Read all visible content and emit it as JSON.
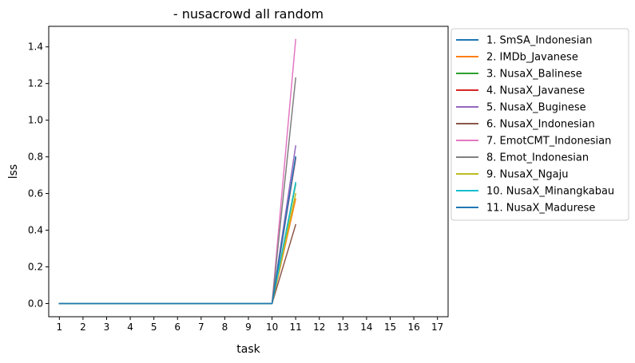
{
  "chart_data": {
    "type": "line",
    "title": "- nusacrowd all random",
    "xlabel": "task",
    "ylabel": "lss",
    "x": [
      1,
      2,
      3,
      4,
      5,
      6,
      7,
      8,
      9,
      10,
      11
    ],
    "xticks": [
      1,
      2,
      3,
      4,
      5,
      6,
      7,
      8,
      9,
      10,
      11,
      12,
      13,
      14,
      15,
      16,
      17
    ],
    "yticks": [
      0.0,
      0.2,
      0.4,
      0.6,
      0.8,
      1.0,
      1.2,
      1.4
    ],
    "xlim": [
      0.55,
      17.45
    ],
    "ylim": [
      -0.072,
      1.512
    ],
    "grid": false,
    "legend_placement": "outside-right",
    "series": [
      {
        "name": "1. SmSA_Indonesian",
        "color": "#1f77b4",
        "values": [
          0,
          0,
          0,
          0,
          0,
          0,
          0,
          0,
          0,
          0,
          0.8
        ]
      },
      {
        "name": "2. IMDb_Javanese",
        "color": "#ff7f0e",
        "values": [
          0,
          0,
          0,
          0,
          0,
          0,
          0,
          0,
          0,
          0,
          0.57
        ]
      },
      {
        "name": "3. NusaX_Balinese",
        "color": "#2ca02c",
        "values": [
          0,
          0,
          0,
          0,
          0,
          0,
          0,
          0,
          0,
          0,
          0.65
        ]
      },
      {
        "name": "4. NusaX_Javanese",
        "color": "#d62728",
        "values": [
          0,
          0,
          0,
          0,
          0,
          0,
          0,
          0,
          0,
          0,
          0.79
        ]
      },
      {
        "name": "5. NusaX_Buginese",
        "color": "#9467bd",
        "values": [
          0,
          0,
          0,
          0,
          0,
          0,
          0,
          0,
          0,
          0,
          0.86
        ]
      },
      {
        "name": "6. NusaX_Indonesian",
        "color": "#8c564b",
        "values": [
          0,
          0,
          0,
          0,
          0,
          0,
          0,
          0,
          0,
          0,
          0.43
        ]
      },
      {
        "name": "7. EmotCMT_Indonesian",
        "color": "#e377c2",
        "values": [
          0,
          0,
          0,
          0,
          0,
          0,
          0,
          0,
          0,
          0,
          1.44
        ]
      },
      {
        "name": "8. Emot_Indonesian",
        "color": "#7f7f7f",
        "values": [
          0,
          0,
          0,
          0,
          0,
          0,
          0,
          0,
          0,
          0,
          1.23
        ]
      },
      {
        "name": "9. NusaX_Ngaju",
        "color": "#bcbd22",
        "values": [
          0,
          0,
          0,
          0,
          0,
          0,
          0,
          0,
          0,
          0,
          0.6
        ]
      },
      {
        "name": "10. NusaX_Minangkabau",
        "color": "#17becf",
        "values": [
          0,
          0,
          0,
          0,
          0,
          0,
          0,
          0,
          0,
          0,
          0.66
        ]
      },
      {
        "name": "11. NusaX_Madurese",
        "color": "#1f77b4",
        "values": [
          0,
          0,
          0,
          0,
          0,
          0,
          0,
          0,
          0,
          0,
          0.8
        ]
      }
    ]
  }
}
